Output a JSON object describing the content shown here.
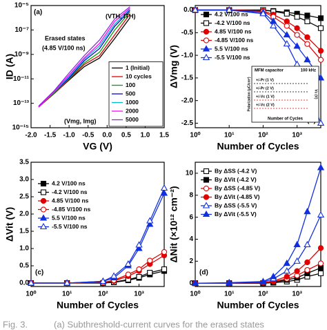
{
  "chart_data": [
    {
      "type": "line",
      "panel_label": "(a)",
      "xlabel": "VG (V)",
      "ylabel": "ID (A)",
      "xlim": [
        -2.0,
        1.5
      ],
      "xticks": [
        {
          "value": -2.0,
          "label": "-2.0"
        },
        -1.5,
        {
          "value": -1.0,
          "label": "-1.0"
        },
        -0.5,
        {
          "value": 0.0,
          "label": "0.0"
        },
        0.5,
        {
          "value": 1.0,
          "label": "1.0"
        },
        1.5
      ],
      "ylim": [
        1e-15,
        1e-05
      ],
      "yscale": "log",
      "yticks": [
        {
          "value": 1e-15,
          "label": "10⁻¹⁵"
        },
        {
          "value": 1e-13,
          "label": "10⁻¹³"
        },
        {
          "value": 1e-11,
          "label": "10⁻¹¹"
        },
        {
          "value": 1e-09,
          "label": "10⁻⁹"
        },
        {
          "value": 1e-07,
          "label": "10⁻⁷"
        },
        {
          "value": 1e-05,
          "label": "10⁻⁵"
        }
      ],
      "legend": "lower right",
      "annotations": [
        "Erased states",
        "(4.85 V/100 ns)",
        "(VTH, ITH)",
        "(Vmg, Img)"
      ],
      "x": [
        -1.8,
        -1.4,
        -1.0,
        -0.6,
        -0.2,
        0.2,
        0.6
      ],
      "series": [
        {
          "name": "1 (Initial)",
          "color": "#000000",
          "marker": "none",
          "values": [
            5e-14,
            6e-13,
            8e-12,
            1e-10,
            5e-10,
            2e-08,
            1e-06
          ]
        },
        {
          "name": "10 cycles",
          "color": "#e00000",
          "marker": "none",
          "values": [
            5e-14,
            6e-13,
            9e-12,
            1.5e-10,
            8e-10,
            4e-08,
            2e-06
          ]
        },
        {
          "name": "100",
          "color": "#00a000",
          "marker": "none",
          "values": [
            5e-14,
            7e-13,
            1e-11,
            2e-10,
            1.5e-09,
            1e-07,
            3e-06
          ]
        },
        {
          "name": "500",
          "color": "#0000e0",
          "marker": "none",
          "values": [
            5e-14,
            8e-13,
            1.2e-11,
            3e-10,
            3e-09,
            2e-07,
            4e-06
          ]
        },
        {
          "name": "1000",
          "color": "#00b8d0",
          "marker": "none",
          "values": [
            5e-14,
            8e-13,
            1.5e-11,
            4e-10,
            5e-09,
            3e-07,
            5e-06
          ]
        },
        {
          "name": "2000",
          "color": "#ff00ff",
          "marker": "none",
          "values": [
            5e-14,
            9e-13,
            2e-11,
            5e-10,
            8e-09,
            5e-07,
            6e-06
          ]
        },
        {
          "name": "5000",
          "color": "#8a2be2",
          "marker": "none",
          "values": [
            6e-14,
            1e-12,
            3e-11,
            8e-10,
            1.5e-08,
            8e-07,
            8e-06
          ]
        }
      ]
    },
    {
      "type": "line",
      "panel_label": "(b)",
      "xlabel": "Number of Cycles",
      "ylabel": "ΔVmg (V)",
      "xlim": [
        1,
        5000
      ],
      "xscale": "log",
      "xticks": [
        {
          "value": 1,
          "label": "10⁰"
        },
        {
          "value": 10,
          "label": "10¹"
        },
        {
          "value": 100,
          "label": "10²"
        },
        {
          "value": 1000,
          "label": "10³"
        }
      ],
      "ylim": [
        -2.6,
        0.1
      ],
      "yticks": [
        {
          "value": 0,
          "label": "0.0"
        },
        -0.5,
        {
          "value": -1,
          "label": "-1.0"
        },
        -1.5,
        {
          "value": -2,
          "label": "-2.0"
        },
        -2.5
      ],
      "legend": "upper left",
      "inset": {
        "title": "MFM capacitor",
        "note": "100 kHz",
        "entries": [
          "+/-Pr (1 V)",
          "+/-Pr (2 V)",
          "+/-Vc (1 V)",
          "+/-Vc (2 V)"
        ],
        "xlabel": "Number of Cycles",
        "ylabel": "Polarization (μC/cm²)",
        "y2label": "Vc (V)"
      },
      "x": [
        1,
        10,
        100,
        200,
        500,
        1000,
        2000,
        5000
      ],
      "series": [
        {
          "name": "4.2 V/100 ns",
          "color": "#000000",
          "marker": "square",
          "values": [
            0,
            0,
            0,
            -0.02,
            -0.05,
            -0.08,
            -0.12,
            -0.18
          ]
        },
        {
          "name": "-4.2 V/100 ns",
          "color": "#000000",
          "marker": "square-open",
          "values": [
            0,
            0,
            0,
            -0.03,
            -0.08,
            -0.15,
            -0.25,
            -0.4
          ]
        },
        {
          "name": "4.85 V/100 ns",
          "color": "#e00000",
          "marker": "circle",
          "values": [
            0,
            0,
            -0.02,
            -0.1,
            -0.25,
            -0.4,
            -0.6,
            -0.9
          ]
        },
        {
          "name": "-4.85 V/100 ns",
          "color": "#e00000",
          "marker": "circle-open",
          "values": [
            0,
            0,
            -0.03,
            -0.15,
            -0.35,
            -0.55,
            -0.75,
            -1.1
          ]
        },
        {
          "name": "5.5 V/100 ns",
          "color": "#1030e0",
          "marker": "triangle",
          "values": [
            0,
            0,
            -0.05,
            -0.25,
            -0.55,
            -0.8,
            -1.1,
            -1.5
          ]
        },
        {
          "name": "-5.5 V/100 ns",
          "color": "#1030e0",
          "marker": "triangle-open",
          "values": [
            0,
            0,
            -0.08,
            -0.35,
            -0.75,
            -1.2,
            -1.7,
            -2.5
          ]
        }
      ]
    },
    {
      "type": "line",
      "panel_label": "(c)",
      "xlabel": "Number of Cycles",
      "ylabel": "ΔVit (V)",
      "xlim": [
        1,
        5000
      ],
      "xscale": "log",
      "xticks": [
        {
          "value": 1,
          "label": "10⁰"
        },
        {
          "value": 10,
          "label": "10¹"
        },
        {
          "value": 100,
          "label": "10²"
        },
        {
          "value": 1000,
          "label": "10³"
        }
      ],
      "ylim": [
        -0.1,
        3.5
      ],
      "yticks": [
        {
          "value": 0,
          "label": "0.0"
        },
        0.5,
        {
          "value": 1,
          "label": "1.0"
        },
        1.5,
        {
          "value": 2,
          "label": "2.0"
        },
        2.5,
        {
          "value": 3,
          "label": "3.0"
        },
        3.5
      ],
      "legend": "center left",
      "x": [
        1,
        10,
        100,
        200,
        500,
        1000,
        2000,
        5000
      ],
      "series": [
        {
          "name": "4.2 V/100 ns",
          "color": "#000000",
          "marker": "square",
          "values": [
            0,
            0,
            0,
            0.02,
            0.08,
            0.15,
            0.25,
            0.35
          ]
        },
        {
          "name": "-4.2 V/100 ns",
          "color": "#000000",
          "marker": "square-open",
          "values": [
            0,
            0,
            0,
            0.03,
            0.1,
            0.18,
            0.3,
            0.4
          ]
        },
        {
          "name": "4.85 V/100 ns",
          "color": "#e00000",
          "marker": "circle",
          "values": [
            0,
            0,
            0.02,
            0.06,
            0.2,
            0.35,
            0.55,
            0.8
          ]
        },
        {
          "name": "-4.85 V/100 ns",
          "color": "#e00000",
          "marker": "circle-open",
          "values": [
            0,
            0,
            0.02,
            0.08,
            0.25,
            0.4,
            0.65,
            0.9
          ]
        },
        {
          "name": "5.5 V/100 ns",
          "color": "#1030e0",
          "marker": "triangle",
          "values": [
            0,
            0,
            0.05,
            0.15,
            0.5,
            1.0,
            1.7,
            2.6
          ]
        },
        {
          "name": "-5.5 V/100 ns",
          "color": "#1030e0",
          "marker": "triangle-open",
          "values": [
            0,
            0,
            0.05,
            0.2,
            0.55,
            1.1,
            1.8,
            2.75
          ]
        }
      ]
    },
    {
      "type": "line",
      "panel_label": "(d)",
      "xlabel": "Number of Cycles",
      "ylabel": "ΔNit (×10¹² cm⁻²)",
      "xlim": [
        1,
        5000
      ],
      "xscale": "log",
      "xticks": [
        {
          "value": 1,
          "label": "10⁰"
        },
        {
          "value": 10,
          "label": "10¹"
        },
        {
          "value": 100,
          "label": "10²"
        },
        {
          "value": 1000,
          "label": "10³"
        }
      ],
      "ylim": [
        -0.3,
        11
      ],
      "yticks": [
        0,
        2,
        4,
        6,
        8,
        10
      ],
      "legend": "upper left",
      "x": [
        1,
        10,
        100,
        200,
        500,
        1000,
        2000,
        5000
      ],
      "series": [
        {
          "name": "By ΔSS (-4.2 V)",
          "color": "#000000",
          "marker": "square-open",
          "values": [
            0,
            0,
            0,
            0.05,
            0.15,
            0.3,
            0.6,
            0.9
          ]
        },
        {
          "name": "By ΔVit (-4.2 V)",
          "color": "#000000",
          "marker": "square",
          "values": [
            0,
            0,
            0,
            0.08,
            0.3,
            0.5,
            0.9,
            1.4
          ]
        },
        {
          "name": "By ΔSS (-4.85 V)",
          "color": "#e00000",
          "marker": "circle-open",
          "values": [
            0,
            0,
            0.05,
            0.15,
            0.4,
            0.7,
            1.2,
            1.8
          ]
        },
        {
          "name": "By ΔVit (-4.85 V)",
          "color": "#e00000",
          "marker": "circle",
          "values": [
            0,
            0,
            0.05,
            0.2,
            0.6,
            1.1,
            1.9,
            3.2
          ]
        },
        {
          "name": "By ΔSS (-5.5 V)",
          "color": "#1030e0",
          "marker": "triangle-open",
          "values": [
            0,
            0,
            0.1,
            0.4,
            1.1,
            2.0,
            3.5,
            6.2
          ]
        },
        {
          "name": "By ΔVit (-5.5 V)",
          "color": "#1030e0",
          "marker": "triangle",
          "values": [
            0,
            0.05,
            0.15,
            0.6,
            1.8,
            3.5,
            6.5,
            10.5
          ]
        }
      ]
    }
  ],
  "caption": {
    "label": "Fig. 3.",
    "text": "(a) Subthreshold-current curves for the erased states"
  }
}
